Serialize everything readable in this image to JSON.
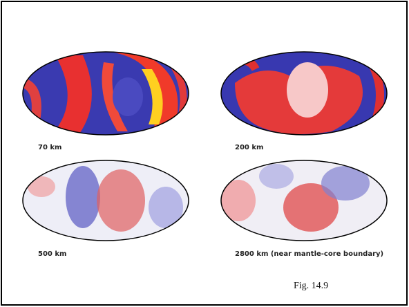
{
  "panels": [
    {
      "label": "70 km"
    },
    {
      "label": "200 km"
    },
    {
      "label": "500 km"
    },
    {
      "label": "2800 km (near mantle-core boundary)"
    }
  ],
  "caption": "Fig. 14.9"
}
